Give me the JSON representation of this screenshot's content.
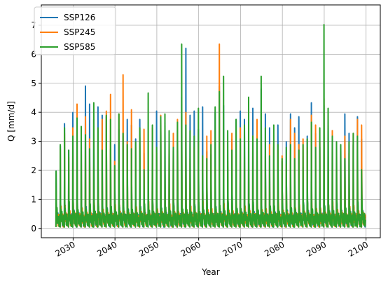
{
  "chart_data": {
    "type": "line",
    "title": "",
    "xlabel": "Year",
    "ylabel": "Q [mm/d]",
    "x_range": [
      2025.9,
      2099.9
    ],
    "xlim": [
      2022.4,
      2103.4
    ],
    "ylim": [
      -0.32,
      7.7
    ],
    "x_ticks": [
      2030,
      2040,
      2050,
      2060,
      2070,
      2080,
      2090,
      2100
    ],
    "y_ticks": [
      0,
      1,
      2,
      3,
      4,
      5,
      6,
      7
    ],
    "grid": true,
    "legend_position": "top-left",
    "series": [
      {
        "name": "SSP126",
        "color": "#1f77b4",
        "annual_peaks": [
          2.05,
          2.95,
          3.75,
          2.8,
          4.15,
          4.05,
          3.3,
          5.1,
          4.45,
          3.9,
          4.35,
          4.05,
          4.0,
          2.85,
          3.0,
          3.55,
          3.3,
          3.9,
          3.7,
          3.2,
          3.9,
          2.7,
          2.45,
          2.65,
          4.2,
          3.6,
          3.85,
          2.85,
          2.95,
          3.5,
          4.7,
          6.45,
          4.05,
          4.2,
          3.55,
          4.35,
          2.75,
          2.65,
          4.15,
          5.1,
          4.4,
          2.2,
          3.2,
          3.9,
          4.2,
          3.9,
          3.2,
          4.3,
          2.9,
          5.0,
          4.1,
          3.6,
          2.9,
          3.7,
          2.4,
          3.1,
          4.1,
          3.6,
          4.0,
          2.2,
          3.3,
          4.5,
          3.4,
          2.9,
          4.4,
          3.8,
          3.5,
          2.6,
          2.9,
          4.1,
          3.4,
          3.0,
          4.0,
          3.2
        ]
      },
      {
        "name": "SSP245",
        "color": "#ff7f0e",
        "annual_peaks": [
          1.4,
          2.85,
          3.4,
          2.55,
          3.6,
          4.45,
          3.1,
          4.0,
          3.2,
          2.2,
          3.0,
          3.9,
          4.2,
          4.8,
          2.4,
          4.1,
          5.5,
          3.1,
          4.25,
          2.9,
          3.25,
          3.55,
          1.9,
          3.6,
          2.7,
          4.05,
          2.2,
          3.1,
          3.4,
          3.9,
          4.0,
          4.15,
          2.5,
          2.9,
          3.1,
          2.5,
          3.3,
          3.5,
          2.2,
          6.6,
          3.0,
          2.4,
          3.4,
          3.0,
          3.6,
          2.8,
          2.2,
          3.3,
          3.9,
          4.1,
          2.6,
          3.0,
          3.1,
          2.8,
          2.6,
          2.3,
          3.9,
          3.4,
          3.0,
          3.2,
          2.9,
          4.05,
          3.7,
          3.1,
          4.65,
          2.7,
          3.5,
          3.0,
          2.9,
          3.3,
          2.7,
          3.4,
          3.9,
          3.7
        ]
      },
      {
        "name": "SSP585",
        "color": "#2ca02c",
        "annual_peaks": [
          2.05,
          3.0,
          3.6,
          2.8,
          3.3,
          3.95,
          3.65,
          3.35,
          2.85,
          4.5,
          3.6,
          2.8,
          4.05,
          3.9,
          2.25,
          4.1,
          3.4,
          3.0,
          2.85,
          3.1,
          3.6,
          2.1,
          4.85,
          3.7,
          2.9,
          4.0,
          4.1,
          3.5,
          2.9,
          3.8,
          6.6,
          3.7,
          3.5,
          3.3,
          4.3,
          2.6,
          2.5,
          3.0,
          4.35,
          4.9,
          5.45,
          3.5,
          2.8,
          3.9,
          3.2,
          3.7,
          4.7,
          3.3,
          3.2,
          5.45,
          3.6,
          2.6,
          3.7,
          3.0,
          2.5,
          2.9,
          3.0,
          2.5,
          2.8,
          3.0,
          3.2,
          3.8,
          2.9,
          3.6,
          7.3,
          4.3,
          3.3,
          3.1,
          3.0,
          2.5,
          3.1,
          3.4,
          3.3,
          2.1
        ]
      }
    ],
    "notes_min_value": 0.05
  }
}
